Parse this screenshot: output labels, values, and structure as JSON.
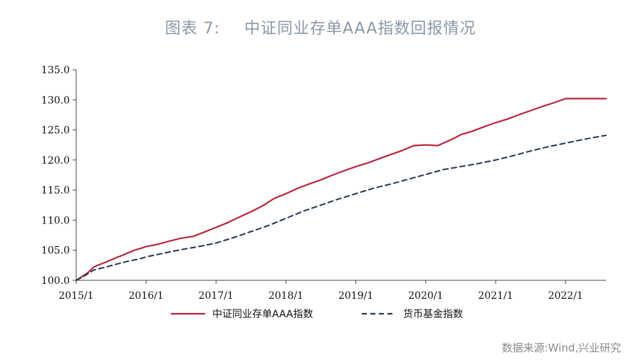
{
  "header": {
    "figure_number": "图表 7:",
    "title_text": "中证同业存单AAA指数回报情况"
  },
  "source": "数据来源:Wind,兴业研究",
  "colors": {
    "series_aaa": "#b5283a",
    "series_mmf": "#273553",
    "axis": "#444444",
    "title": "#8a98a8"
  },
  "chart_data": {
    "type": "line",
    "title": "中证同业存单AAA指数回报情况",
    "xlabel": "",
    "ylabel": "",
    "ylim": [
      100.0,
      135.0
    ],
    "xlim": [
      2015.0,
      2022.58
    ],
    "yticks": [
      100.0,
      105.0,
      110.0,
      115.0,
      120.0,
      125.0,
      130.0,
      135.0
    ],
    "ytick_labels": [
      "100.0",
      "105.0",
      "110.0",
      "115.0",
      "120.0",
      "125.0",
      "130.0",
      "135.0"
    ],
    "xticks": [
      2015,
      2016,
      2017,
      2018,
      2019,
      2020,
      2021,
      2022
    ],
    "xtick_labels": [
      "2015/1",
      "2016/1",
      "2017/1",
      "2018/1",
      "2019/1",
      "2020/1",
      "2021/1",
      "2022/1"
    ],
    "grid": false,
    "legend_position": "bottom",
    "series": [
      {
        "name": "中证同业存单AAA指数",
        "style": "solid",
        "x": [
          2015.0,
          2015.08,
          2015.17,
          2015.25,
          2015.33,
          2015.42,
          2015.5,
          2015.58,
          2015.67,
          2015.75,
          2015.83,
          2015.92,
          2016.0,
          2016.17,
          2016.33,
          2016.5,
          2016.67,
          2016.83,
          2017.0,
          2017.17,
          2017.33,
          2017.5,
          2017.67,
          2017.83,
          2018.0,
          2018.17,
          2018.33,
          2018.5,
          2018.67,
          2018.83,
          2019.0,
          2019.17,
          2019.33,
          2019.5,
          2019.67,
          2019.83,
          2020.0,
          2020.17,
          2020.25,
          2020.33,
          2020.42,
          2020.5,
          2020.67,
          2020.83,
          2021.0,
          2021.17,
          2021.33,
          2021.5,
          2021.67,
          2021.83,
          2022.0,
          2022.17,
          2022.33,
          2022.58
        ],
        "values": [
          100.0,
          100.6,
          101.3,
          102.2,
          102.6,
          103.0,
          103.4,
          103.8,
          104.2,
          104.6,
          105.0,
          105.3,
          105.6,
          106.0,
          106.5,
          107.0,
          107.3,
          108.0,
          108.8,
          109.6,
          110.5,
          111.4,
          112.4,
          113.6,
          114.4,
          115.3,
          116.0,
          116.7,
          117.5,
          118.2,
          118.9,
          119.5,
          120.2,
          120.9,
          121.6,
          122.4,
          122.5,
          122.4,
          122.8,
          123.2,
          123.7,
          124.2,
          124.8,
          125.5,
          126.2,
          126.8,
          127.5,
          128.2,
          128.9,
          129.5,
          130.2,
          130.2,
          130.2,
          130.2
        ]
      },
      {
        "name": "货币基金指数",
        "style": "dashed",
        "x": [
          2015.0,
          2015.08,
          2015.17,
          2015.25,
          2015.42,
          2015.58,
          2015.75,
          2015.92,
          2016.0,
          2016.25,
          2016.5,
          2016.75,
          2017.0,
          2017.25,
          2017.5,
          2017.75,
          2018.0,
          2018.25,
          2018.5,
          2018.75,
          2019.0,
          2019.25,
          2019.5,
          2019.75,
          2020.0,
          2020.25,
          2020.5,
          2020.75,
          2021.0,
          2021.25,
          2021.5,
          2021.75,
          2022.0,
          2022.25,
          2022.58
        ],
        "values": [
          100.0,
          100.5,
          101.1,
          101.7,
          102.2,
          102.7,
          103.2,
          103.6,
          103.9,
          104.5,
          105.1,
          105.6,
          106.2,
          107.1,
          108.1,
          109.1,
          110.3,
          111.5,
          112.5,
          113.5,
          114.4,
          115.3,
          116.0,
          116.8,
          117.6,
          118.4,
          118.9,
          119.4,
          120.0,
          120.7,
          121.5,
          122.2,
          122.8,
          123.4,
          124.1
        ]
      }
    ]
  }
}
